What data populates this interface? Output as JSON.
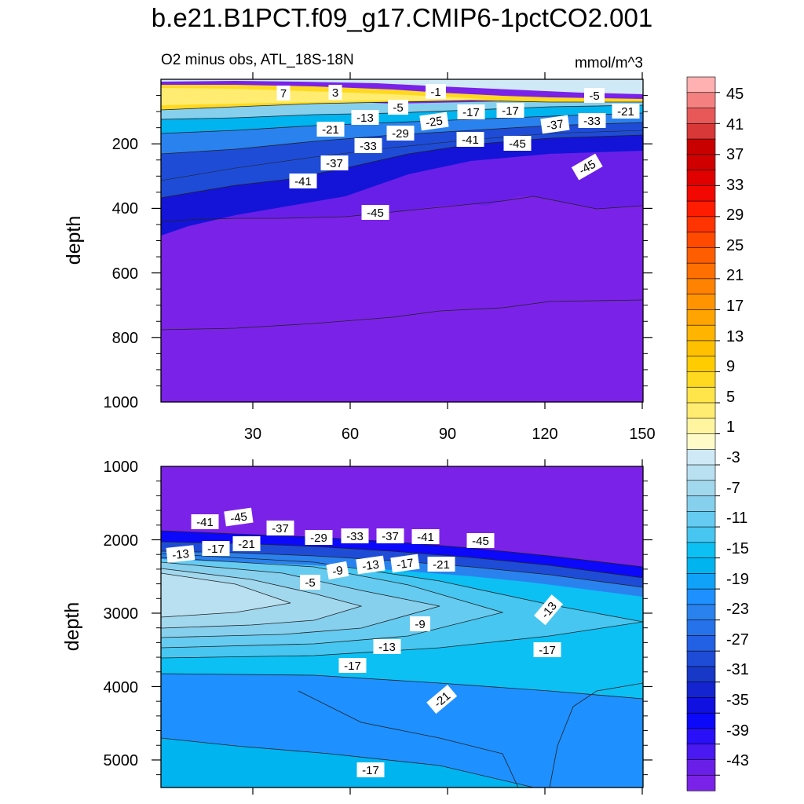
{
  "chart_data": {
    "type": "contour",
    "title": "b.e21.B1PCT.f09_g17.CMIP6-1pctCO2.001",
    "subtitle_left": "O2 minus obs, ATL_18S-18N",
    "subtitle_right": "mmol/m^3",
    "colorbar": {
      "levels": [
        -45,
        -43,
        -41,
        -39,
        -37,
        -35,
        -33,
        -31,
        -29,
        -27,
        -25,
        -23,
        -21,
        -19,
        -17,
        -15,
        -13,
        -11,
        -9,
        -7,
        -5,
        -3,
        -1,
        1,
        3,
        5,
        7,
        9,
        11,
        13,
        15,
        17,
        19,
        21,
        23,
        25,
        27,
        29,
        31,
        33,
        35,
        37,
        39,
        41,
        43,
        45
      ],
      "tick_labels": [
        "45",
        "41",
        "37",
        "33",
        "29",
        "25",
        "21",
        "17",
        "13",
        "9",
        "5",
        "1",
        "-3",
        "-7",
        "-11",
        "-15",
        "-19",
        "-23",
        "-27",
        "-31",
        "-35",
        "-39",
        "-43"
      ],
      "colors": [
        "#7b22e8",
        "#6a1fe8",
        "#4a18f0",
        "#2a10f8",
        "#0c08fa",
        "#1010e0",
        "#1424d0",
        "#1838c8",
        "#1e4cd6",
        "#2260e4",
        "#2672ea",
        "#2a82ee",
        "#1e90ff",
        "#10a2f8",
        "#00b4f0",
        "#0cc0f4",
        "#46c6f0",
        "#66cbf0",
        "#86d0ee",
        "#a2d8ee",
        "#b8e0f0",
        "#cfe9f6",
        "#fffbc8",
        "#fff4a0",
        "#ffec70",
        "#ffe44a",
        "#ffd820",
        "#ffcc00",
        "#ffc000",
        "#ffb400",
        "#ffa400",
        "#ff9400",
        "#ff8200",
        "#ff7000",
        "#ff5e00",
        "#ff4a00",
        "#ff3400",
        "#ff1c00",
        "#f20800",
        "#e00000",
        "#d00000",
        "#c80000",
        "#d83838",
        "#e85858",
        "#f48080",
        "#ffb0b0"
      ]
    },
    "panels": [
      {
        "name": "upper",
        "xlabel": "",
        "ylabel": "depth",
        "x_ticks": [
          "30",
          "60",
          "90",
          "120",
          "150"
        ],
        "y_ticks": [
          "200",
          "400",
          "600",
          "800",
          "1000"
        ],
        "xlim": [
          0,
          150
        ],
        "ylim": [
          0,
          1000
        ],
        "contour_labels": [
          "7",
          "3",
          "-1",
          "-5",
          "-5",
          "-13",
          "-17",
          "-17",
          "-21",
          "-21",
          "-25",
          "-29",
          "-33",
          "-37",
          "-33",
          "-41",
          "-45",
          "-37",
          "-41",
          "-45",
          "-45"
        ]
      },
      {
        "name": "lower",
        "xlabel": "",
        "ylabel": "depth",
        "x_ticks": [],
        "y_ticks": [
          "1000",
          "2000",
          "3000",
          "4000",
          "5000"
        ],
        "xlim": [
          0,
          150
        ],
        "ylim": [
          1000,
          5375
        ],
        "contour_labels": [
          "-41",
          "-45",
          "-37",
          "-29",
          "-33",
          "-37",
          "-41",
          "-45",
          "-13",
          "-17",
          "-21",
          "-9",
          "-13",
          "-17",
          "-21",
          "-5",
          "-13",
          "-9",
          "-13",
          "-17",
          "-17",
          "-21",
          "-17"
        ]
      }
    ]
  }
}
